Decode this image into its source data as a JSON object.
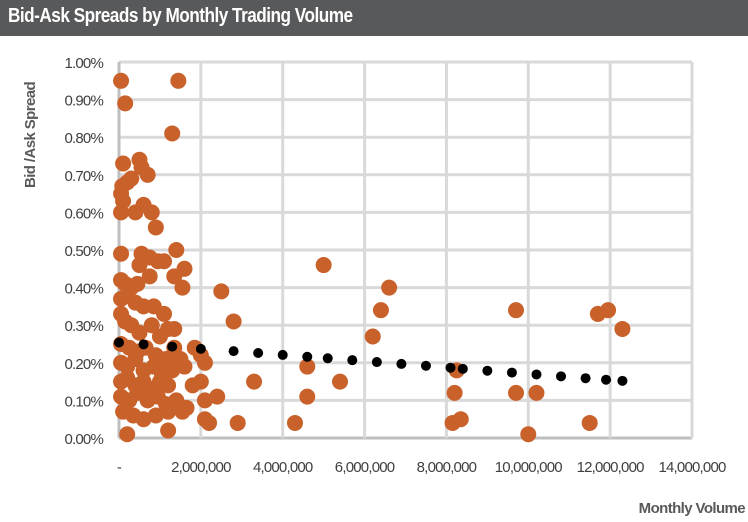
{
  "header": {
    "title": "Bid-Ask Spreads by Monthly Trading Volume"
  },
  "colors": {
    "header_bg": "#58595b",
    "points": "#c9612a",
    "trend": "#000000",
    "grid": "#d9d9d9",
    "axis": "#bfbfbf"
  },
  "chart_data": {
    "type": "scatter",
    "title": "Bid-Ask Spreads by Monthly Trading Volume",
    "xlabel": "Monthly Volume",
    "ylabel": "Bid /Ask Spread",
    "xlim": [
      0,
      14000000
    ],
    "ylim": [
      0,
      1.0
    ],
    "grid": true,
    "legend": "none",
    "x_ticks": [
      "-",
      "2,000,000",
      "4,000,000",
      "6,000,000",
      "8,000,000",
      "10,000,000",
      "12,000,000",
      "14,000,000"
    ],
    "y_ticks": [
      "0.00%",
      "0.10%",
      "0.20%",
      "0.30%",
      "0.40%",
      "0.50%",
      "0.60%",
      "0.70%",
      "0.80%",
      "0.90%",
      "1.00%"
    ],
    "series": [
      {
        "name": "Spread",
        "points": [
          [
            50000,
            0.95
          ],
          [
            1450000,
            0.95
          ],
          [
            150000,
            0.89
          ],
          [
            1300000,
            0.81
          ],
          [
            100000,
            0.73
          ],
          [
            500000,
            0.74
          ],
          [
            550000,
            0.72
          ],
          [
            80000,
            0.67
          ],
          [
            300000,
            0.69
          ],
          [
            200000,
            0.68
          ],
          [
            700000,
            0.7
          ],
          [
            50000,
            0.65
          ],
          [
            100000,
            0.63
          ],
          [
            50000,
            0.6
          ],
          [
            400000,
            0.6
          ],
          [
            600000,
            0.62
          ],
          [
            800000,
            0.6
          ],
          [
            900000,
            0.56
          ],
          [
            50000,
            0.49
          ],
          [
            550000,
            0.49
          ],
          [
            750000,
            0.48
          ],
          [
            1400000,
            0.5
          ],
          [
            500000,
            0.46
          ],
          [
            950000,
            0.47
          ],
          [
            1100000,
            0.47
          ],
          [
            1600000,
            0.45
          ],
          [
            5000000,
            0.46
          ],
          [
            50000,
            0.42
          ],
          [
            150000,
            0.41
          ],
          [
            300000,
            0.4
          ],
          [
            450000,
            0.41
          ],
          [
            750000,
            0.43
          ],
          [
            1350000,
            0.43
          ],
          [
            1550000,
            0.4
          ],
          [
            2500000,
            0.39
          ],
          [
            6600000,
            0.4
          ],
          [
            50000,
            0.37
          ],
          [
            200000,
            0.38
          ],
          [
            400000,
            0.36
          ],
          [
            600000,
            0.35
          ],
          [
            850000,
            0.35
          ],
          [
            1100000,
            0.33
          ],
          [
            1350000,
            0.29
          ],
          [
            2800000,
            0.31
          ],
          [
            6400000,
            0.34
          ],
          [
            9700000,
            0.34
          ],
          [
            11700000,
            0.33
          ],
          [
            11950000,
            0.34
          ],
          [
            12300000,
            0.29
          ],
          [
            50000,
            0.33
          ],
          [
            150000,
            0.31
          ],
          [
            300000,
            0.3
          ],
          [
            500000,
            0.28
          ],
          [
            800000,
            0.3
          ],
          [
            1000000,
            0.27
          ],
          [
            1200000,
            0.29
          ],
          [
            6200000,
            0.27
          ],
          [
            50000,
            0.25
          ],
          [
            250000,
            0.24
          ],
          [
            450000,
            0.23
          ],
          [
            650000,
            0.24
          ],
          [
            900000,
            0.22
          ],
          [
            1150000,
            0.21
          ],
          [
            1350000,
            0.24
          ],
          [
            1500000,
            0.21
          ],
          [
            1850000,
            0.24
          ],
          [
            2000000,
            0.22
          ],
          [
            50000,
            0.2
          ],
          [
            200000,
            0.19
          ],
          [
            400000,
            0.21
          ],
          [
            600000,
            0.18
          ],
          [
            850000,
            0.19
          ],
          [
            1050000,
            0.17
          ],
          [
            1300000,
            0.18
          ],
          [
            1600000,
            0.19
          ],
          [
            2100000,
            0.2
          ],
          [
            4600000,
            0.19
          ],
          [
            8250000,
            0.18
          ],
          [
            50000,
            0.15
          ],
          [
            200000,
            0.16
          ],
          [
            400000,
            0.14
          ],
          [
            600000,
            0.15
          ],
          [
            800000,
            0.13
          ],
          [
            1000000,
            0.15
          ],
          [
            1200000,
            0.14
          ],
          [
            1800000,
            0.14
          ],
          [
            2000000,
            0.15
          ],
          [
            3300000,
            0.15
          ],
          [
            5400000,
            0.15
          ],
          [
            50000,
            0.11
          ],
          [
            250000,
            0.1
          ],
          [
            450000,
            0.12
          ],
          [
            700000,
            0.1
          ],
          [
            950000,
            0.11
          ],
          [
            1150000,
            0.09
          ],
          [
            1400000,
            0.1
          ],
          [
            1650000,
            0.08
          ],
          [
            2100000,
            0.1
          ],
          [
            2400000,
            0.11
          ],
          [
            4600000,
            0.11
          ],
          [
            8200000,
            0.12
          ],
          [
            9700000,
            0.12
          ],
          [
            10200000,
            0.12
          ],
          [
            100000,
            0.07
          ],
          [
            350000,
            0.06
          ],
          [
            600000,
            0.05
          ],
          [
            900000,
            0.06
          ],
          [
            1200000,
            0.07
          ],
          [
            1550000,
            0.07
          ],
          [
            2100000,
            0.05
          ],
          [
            2200000,
            0.04
          ],
          [
            2900000,
            0.04
          ],
          [
            4300000,
            0.04
          ],
          [
            8150000,
            0.04
          ],
          [
            8350000,
            0.05
          ],
          [
            11500000,
            0.04
          ],
          [
            200000,
            0.01
          ],
          [
            1200000,
            0.02
          ],
          [
            10000000,
            0.01
          ]
        ]
      },
      {
        "name": "Linear trend",
        "style": "dotted",
        "points": [
          [
            0,
            0.254
          ],
          [
            600000,
            0.249
          ],
          [
            1300000,
            0.243
          ],
          [
            2000000,
            0.237
          ],
          [
            2800000,
            0.231
          ],
          [
            3400000,
            0.226
          ],
          [
            4000000,
            0.221
          ],
          [
            4600000,
            0.216
          ],
          [
            5100000,
            0.212
          ],
          [
            5700000,
            0.207
          ],
          [
            6300000,
            0.202
          ],
          [
            6900000,
            0.197
          ],
          [
            7500000,
            0.192
          ],
          [
            8100000,
            0.187
          ],
          [
            8400000,
            0.184
          ],
          [
            9000000,
            0.179
          ],
          [
            9600000,
            0.174
          ],
          [
            10200000,
            0.169
          ],
          [
            10800000,
            0.164
          ],
          [
            11400000,
            0.159
          ],
          [
            11900000,
            0.155
          ],
          [
            12300000,
            0.152
          ]
        ]
      }
    ]
  }
}
